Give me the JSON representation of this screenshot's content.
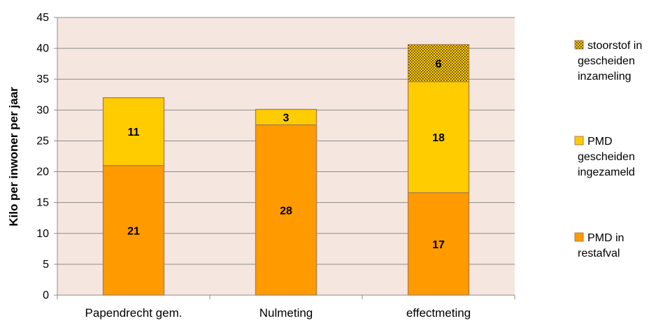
{
  "chart_data": {
    "type": "bar",
    "stacked": true,
    "title": "",
    "xlabel": "",
    "ylabel": "Kilo per inwoner per jaar",
    "ylim": [
      0,
      45
    ],
    "yticks": [
      0,
      5,
      10,
      15,
      20,
      25,
      30,
      35,
      40,
      45
    ],
    "grid": true,
    "legend_position": "right",
    "plot_background": "#f6e6e0",
    "categories": [
      "Papendrecht gem.",
      "Nulmeting",
      "effectmeting"
    ],
    "series": [
      {
        "name": "PMD in restafval",
        "color": "#ff9a00",
        "pattern": "solid",
        "values": [
          21,
          27.6,
          16.6
        ],
        "labels": [
          "21",
          "28",
          "17"
        ]
      },
      {
        "name": "PMD gescheiden ingezameld",
        "color": "#ffcc00",
        "pattern": "solid",
        "values": [
          11,
          2.5,
          18
        ],
        "labels": [
          "11",
          "3",
          "18"
        ]
      },
      {
        "name": "stoorstof in gescheiden inzameling",
        "color": "#ffcc00",
        "pattern": "dotted",
        "values": [
          null,
          null,
          6
        ],
        "labels": [
          null,
          null,
          "6"
        ]
      }
    ],
    "legend": [
      {
        "lines": [
          "stoorstof in",
          "gescheiden",
          "inzameling"
        ]
      },
      {
        "lines": [
          "PMD",
          "gescheiden",
          "ingezameld"
        ]
      },
      {
        "lines": [
          "PMD in",
          "restafval"
        ]
      }
    ]
  }
}
